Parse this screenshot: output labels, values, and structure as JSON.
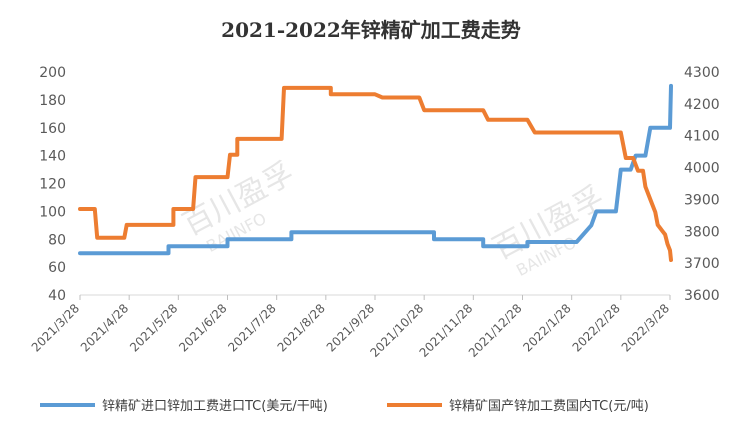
{
  "chart_data": {
    "type": "line",
    "title": "2021-2022年锌精矿加工费走势",
    "watermark": {
      "cn": "百川盈孚",
      "en": "BAIINFO"
    },
    "x_axis": {
      "ticks": [
        "2021/3/28",
        "2021/4/28",
        "2021/5/28",
        "2021/6/28",
        "2021/7/28",
        "2021/8/28",
        "2021/9/28",
        "2021/10/28",
        "2021/11/28",
        "2021/12/28",
        "2022/1/28",
        "2022/2/28",
        "2022/3/28"
      ]
    },
    "y_left": {
      "min": 40,
      "max": 200,
      "ticks": [
        40,
        60,
        80,
        100,
        120,
        140,
        160,
        180,
        200
      ]
    },
    "y_right": {
      "min": 3600,
      "max": 4300,
      "ticks": [
        3600,
        3700,
        3800,
        3900,
        4000,
        4100,
        4200,
        4300
      ]
    },
    "legend_position": "bottom",
    "series": [
      {
        "name": "锌精矿进口锌加工费进口TC(美元/干吨)",
        "axis": "left",
        "color": "#5B9BD5",
        "points": [
          [
            0,
            70
          ],
          [
            1.8,
            70
          ],
          [
            1.8,
            75
          ],
          [
            3.0,
            75
          ],
          [
            3.0,
            80
          ],
          [
            4.3,
            80
          ],
          [
            4.3,
            85
          ],
          [
            7.2,
            85
          ],
          [
            7.2,
            80
          ],
          [
            8.2,
            80
          ],
          [
            8.2,
            75
          ],
          [
            9.1,
            75
          ],
          [
            9.1,
            78
          ],
          [
            10.1,
            78
          ],
          [
            10.4,
            90
          ],
          [
            10.5,
            100
          ],
          [
            10.9,
            100
          ],
          [
            11.0,
            130
          ],
          [
            11.2,
            130
          ],
          [
            11.3,
            140
          ],
          [
            11.5,
            140
          ],
          [
            11.6,
            160
          ],
          [
            12.0,
            160
          ],
          [
            12.02,
            190
          ]
        ]
      },
      {
        "name": "锌精矿国产锌加工费国内TC(元/吨)",
        "axis": "right",
        "color": "#ED7D31",
        "points": [
          [
            0,
            3870
          ],
          [
            0.3,
            3870
          ],
          [
            0.35,
            3780
          ],
          [
            0.9,
            3780
          ],
          [
            0.95,
            3820
          ],
          [
            1.9,
            3820
          ],
          [
            1.9,
            3830
          ],
          [
            1.9,
            3870
          ],
          [
            2.3,
            3870
          ],
          [
            2.35,
            3970
          ],
          [
            3.0,
            3970
          ],
          [
            3.05,
            4040
          ],
          [
            3.2,
            4040
          ],
          [
            3.2,
            4090
          ],
          [
            4.1,
            4090
          ],
          [
            4.15,
            4250
          ],
          [
            5.1,
            4250
          ],
          [
            5.1,
            4230
          ],
          [
            6.0,
            4230
          ],
          [
            6.15,
            4220
          ],
          [
            6.9,
            4220
          ],
          [
            7.0,
            4180
          ],
          [
            8.2,
            4180
          ],
          [
            8.3,
            4150
          ],
          [
            9.1,
            4150
          ],
          [
            9.25,
            4110
          ],
          [
            11.0,
            4110
          ],
          [
            11.1,
            4030
          ],
          [
            11.25,
            4030
          ],
          [
            11.35,
            3990
          ],
          [
            11.45,
            3990
          ],
          [
            11.5,
            3940
          ],
          [
            11.6,
            3900
          ],
          [
            11.7,
            3860
          ],
          [
            11.75,
            3820
          ],
          [
            11.8,
            3810
          ],
          [
            11.85,
            3800
          ],
          [
            11.9,
            3790
          ],
          [
            11.95,
            3760
          ],
          [
            12.0,
            3740
          ],
          [
            12.02,
            3710
          ]
        ]
      }
    ]
  }
}
